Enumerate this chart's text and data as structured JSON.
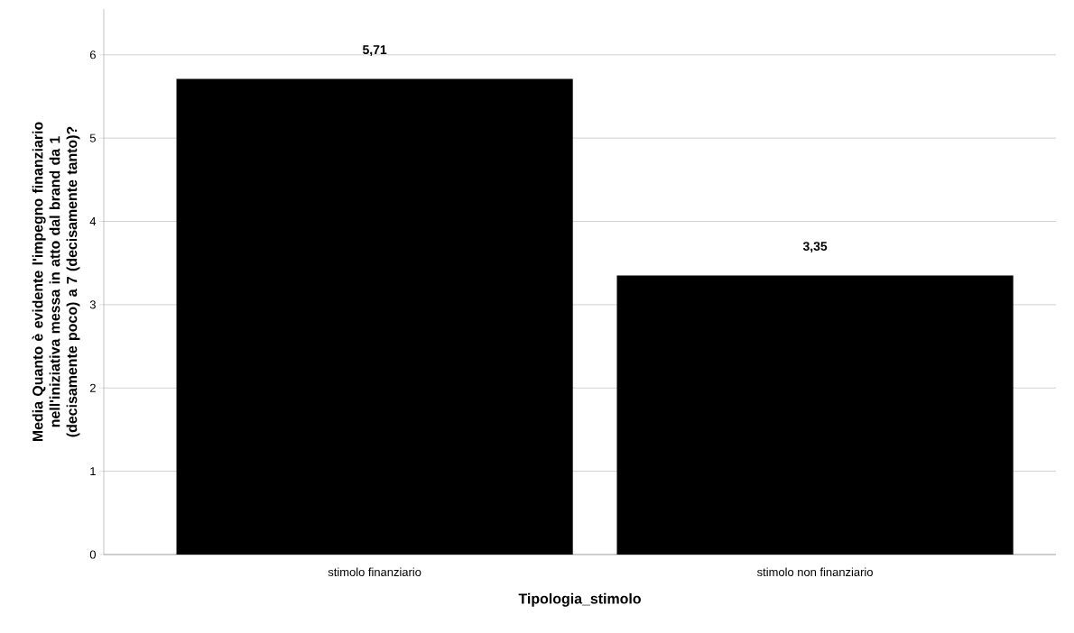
{
  "chart_data": {
    "type": "bar",
    "xlabel": "Tipologia_stimolo",
    "ylabel": "Media Quanto è evidente l'impegno finanziario nell'iniziativa messa in atto dal brand da 1 (decisamente poco) a 7 (decisamente tanto)?",
    "categories": [
      "stimolo finanziario",
      "stimolo non finanziario"
    ],
    "values": [
      5.71,
      3.35
    ],
    "value_labels": [
      "5,71",
      "3,35"
    ],
    "color": "#000000",
    "ylim": [
      0,
      6.55
    ],
    "yticks": [
      0,
      1,
      2,
      3,
      4,
      5,
      6
    ],
    "grid": "y"
  }
}
